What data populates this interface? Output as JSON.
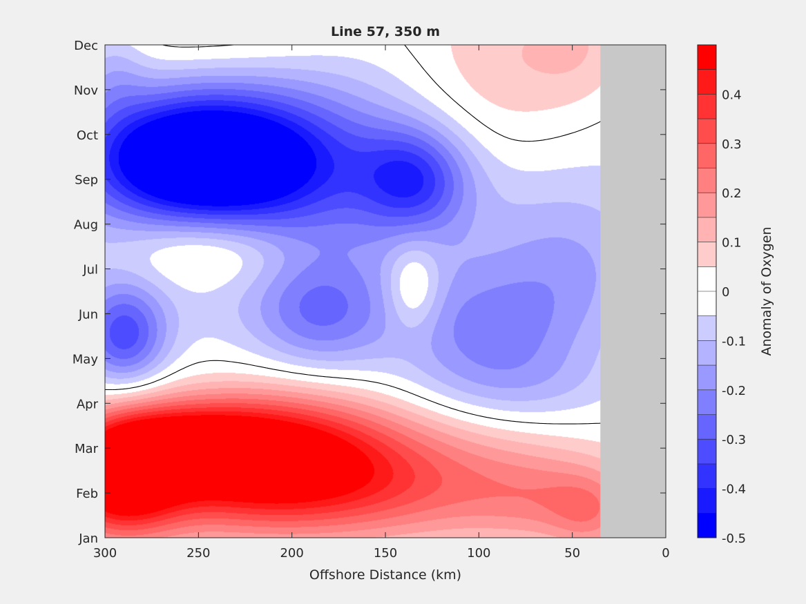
{
  "chart_data": {
    "type": "heatmap",
    "title": "Line 57, 350 m",
    "xlabel": "Offshore Distance (km)",
    "ylabel": "",
    "xlim": [
      300,
      0
    ],
    "xticks": [
      300,
      250,
      200,
      150,
      100,
      50,
      0
    ],
    "ytick_labels": [
      "Jan",
      "Feb",
      "Mar",
      "Apr",
      "May",
      "Jun",
      "Jul",
      "Aug",
      "Sep",
      "Oct",
      "Nov",
      "Dec"
    ],
    "no_data_from_km": 35,
    "no_data_color": "#c8c8c8",
    "colorbar": {
      "label": "Anomaly of Oxygen",
      "range": [
        -0.5,
        0.5
      ],
      "step": 0.05,
      "ticks": [
        -0.5,
        -0.4,
        -0.3,
        -0.2,
        -0.1,
        0,
        0.1,
        0.2,
        0.3,
        0.4
      ],
      "min_color": "#0000ff",
      "mid_color": "#ffffff",
      "max_color": "#ff0000"
    },
    "zero_contour": true,
    "anomaly_features": [
      {
        "name": "Feb–Mar offshore maximum",
        "km": 292,
        "month": 1.5,
        "value": 0.45
      },
      {
        "name": "Feb–Mar secondary maximum",
        "km": 215,
        "month": 2.0,
        "value": 0.4
      },
      {
        "name": "Sep minimum",
        "km": 255,
        "month": 8.4,
        "value": -0.45
      },
      {
        "name": "Sep secondary minimum",
        "km": 135,
        "month": 8.0,
        "value": -0.25
      },
      {
        "name": "May minimum",
        "km": 290,
        "month": 4.5,
        "value": -0.28
      },
      {
        "name": "Jun minimum",
        "km": 180,
        "month": 5.0,
        "value": -0.18
      },
      {
        "name": "May small minimum",
        "km": 95,
        "month": 4.5,
        "value": -0.16
      },
      {
        "name": "Jul positive patch",
        "km": 245,
        "month": 6.3,
        "value": 0.15
      },
      {
        "name": "Jun positive patch",
        "km": 135,
        "month": 5.6,
        "value": 0.15
      },
      {
        "name": "Oct–Dec nearshore positive",
        "km": 90,
        "month": 10.0,
        "value": 0.12
      },
      {
        "name": "Feb nearshore positive",
        "km": 130,
        "month": 1.6,
        "value": 0.18
      }
    ]
  }
}
